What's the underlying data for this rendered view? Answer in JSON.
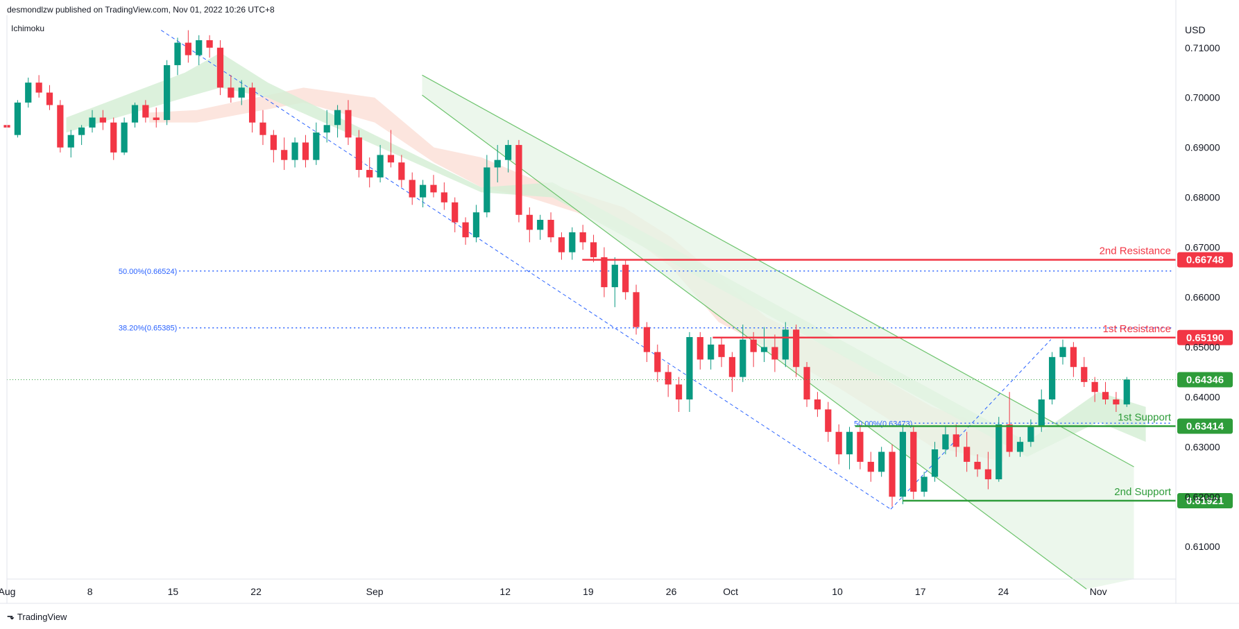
{
  "header": {
    "published_by": "desmondlzw published on TradingView.com, Nov 01, 2022 10:26 UTC+8"
  },
  "indicator": {
    "name": "Ichimoku"
  },
  "footer": {
    "brand": "TradingView",
    "logo": "tradingview-logo-icon"
  },
  "colors": {
    "up": "#26a69a",
    "up_candle": "#089981",
    "down": "#f23645",
    "resistance": "#f23645",
    "support": "#2e9c3a",
    "fib": "#2962ff",
    "channel_line": "#6cc36c",
    "channel_fill": "#e6f4e6",
    "cloud_bear": "#fbe0d8",
    "cloud_bull": "#d6efd6",
    "last_price": "#2e9c3a"
  },
  "chart_data": {
    "type": "candlestick",
    "symbol_currency": "USD",
    "ylim": [
      0.6035,
      0.7165
    ],
    "y_ticks": [
      "0.61000",
      "0.62000",
      "0.63000",
      "0.64000",
      "0.65000",
      "0.66000",
      "0.67000",
      "0.68000",
      "0.69000",
      "0.70000",
      "0.71000"
    ],
    "x_ticks": [
      {
        "label": "Aug",
        "day": 0
      },
      {
        "label": "8",
        "day": 7
      },
      {
        "label": "15",
        "day": 14
      },
      {
        "label": "22",
        "day": 21
      },
      {
        "label": "Sep",
        "day": 31
      },
      {
        "label": "12",
        "day": 42
      },
      {
        "label": "19",
        "day": 49
      },
      {
        "label": "26",
        "day": 56
      },
      {
        "label": "Oct",
        "day": 61
      },
      {
        "label": "10",
        "day": 70
      },
      {
        "label": "17",
        "day": 77
      },
      {
        "label": "24",
        "day": 84
      },
      {
        "label": "Nov",
        "day": 92
      }
    ],
    "last_price": "0.64346",
    "levels": [
      {
        "name": "2nd Resistance",
        "value": "0.66748",
        "kind": "resistance",
        "from_day": 48.5
      },
      {
        "name": "1st Resistance",
        "value": "0.65190",
        "kind": "resistance",
        "from_day": 59.5
      },
      {
        "name": "1st Support",
        "value": "0.63414",
        "kind": "support",
        "from_day": 71.5
      },
      {
        "name": "2nd Support",
        "value": "0.61921",
        "kind": "support",
        "from_day": 75.5
      }
    ],
    "fib_levels": [
      {
        "label": "50.00%(0.66524)",
        "value": 0.66524,
        "from_day": 7.5
      },
      {
        "label": "38.20%(0.65385)",
        "value": 0.65385,
        "from_day": 7.5
      },
      {
        "label": "50.00%(0.63473)",
        "value": 0.63473,
        "from_day": 69.5
      }
    ],
    "fib_swings": [
      {
        "from": [
          13,
          0.7135
        ],
        "to": [
          74.5,
          0.6175
        ]
      },
      {
        "from": [
          74.5,
          0.6175
        ],
        "to": [
          88,
          0.6515
        ]
      }
    ],
    "channel": {
      "upper": [
        [
          35,
          0.7045
        ],
        [
          95,
          0.626
        ]
      ],
      "lower": [
        [
          35,
          0.7005
        ],
        [
          91,
          0.6015
        ]
      ],
      "fill_end_day": 95
    },
    "candles_ohlc": [
      [
        0.6945,
        0.6955,
        0.6935,
        0.694
      ],
      [
        0.6925,
        0.6995,
        0.692,
        0.699
      ],
      [
        0.699,
        0.704,
        0.698,
        0.703
      ],
      [
        0.703,
        0.7045,
        0.7,
        0.701
      ],
      [
        0.701,
        0.7025,
        0.6975,
        0.6985
      ],
      [
        0.6985,
        0.6995,
        0.689,
        0.69
      ],
      [
        0.69,
        0.6935,
        0.688,
        0.6925
      ],
      [
        0.6925,
        0.6945,
        0.6905,
        0.694
      ],
      [
        0.694,
        0.6975,
        0.693,
        0.696
      ],
      [
        0.696,
        0.6975,
        0.6935,
        0.695
      ],
      [
        0.695,
        0.696,
        0.6875,
        0.689
      ],
      [
        0.689,
        0.696,
        0.6885,
        0.695
      ],
      [
        0.695,
        0.699,
        0.694,
        0.6985
      ],
      [
        0.6985,
        0.6995,
        0.695,
        0.696
      ],
      [
        0.696,
        0.698,
        0.694,
        0.6955
      ],
      [
        0.6955,
        0.7075,
        0.6945,
        0.7065
      ],
      [
        0.7065,
        0.712,
        0.7045,
        0.711
      ],
      [
        0.711,
        0.7135,
        0.707,
        0.7085
      ],
      [
        0.7085,
        0.7125,
        0.7065,
        0.7115
      ],
      [
        0.7115,
        0.7125,
        0.708,
        0.71
      ],
      [
        0.71,
        0.7115,
        0.7005,
        0.702
      ],
      [
        0.702,
        0.7045,
        0.699,
        0.7
      ],
      [
        0.7,
        0.7035,
        0.6985,
        0.702
      ],
      [
        0.702,
        0.703,
        0.693,
        0.695
      ],
      [
        0.695,
        0.6975,
        0.6905,
        0.6925
      ],
      [
        0.6925,
        0.6935,
        0.687,
        0.6895
      ],
      [
        0.6895,
        0.692,
        0.6855,
        0.6875
      ],
      [
        0.6875,
        0.692,
        0.686,
        0.691
      ],
      [
        0.691,
        0.6925,
        0.686,
        0.6875
      ],
      [
        0.6875,
        0.695,
        0.6865,
        0.693
      ],
      [
        0.693,
        0.6975,
        0.691,
        0.6945
      ],
      [
        0.6945,
        0.6985,
        0.692,
        0.6975
      ],
      [
        0.6975,
        0.6995,
        0.6905,
        0.692
      ],
      [
        0.692,
        0.6935,
        0.684,
        0.6855
      ],
      [
        0.6855,
        0.688,
        0.682,
        0.684
      ],
      [
        0.684,
        0.6905,
        0.683,
        0.6885
      ],
      [
        0.6885,
        0.6935,
        0.686,
        0.687
      ],
      [
        0.687,
        0.6885,
        0.682,
        0.6835
      ],
      [
        0.6835,
        0.685,
        0.6785,
        0.68
      ],
      [
        0.68,
        0.6835,
        0.678,
        0.6825
      ],
      [
        0.6825,
        0.6845,
        0.68,
        0.681
      ],
      [
        0.681,
        0.683,
        0.6775,
        0.679
      ],
      [
        0.679,
        0.68,
        0.673,
        0.675
      ],
      [
        0.675,
        0.676,
        0.6705,
        0.672
      ],
      [
        0.672,
        0.6785,
        0.671,
        0.677
      ],
      [
        0.677,
        0.6885,
        0.676,
        0.686
      ],
      [
        0.686,
        0.6905,
        0.683,
        0.6875
      ],
      [
        0.6875,
        0.6915,
        0.685,
        0.6905
      ],
      [
        0.6905,
        0.6915,
        0.675,
        0.6765
      ],
      [
        0.6765,
        0.678,
        0.671,
        0.6735
      ],
      [
        0.6735,
        0.6765,
        0.6715,
        0.6755
      ],
      [
        0.6755,
        0.677,
        0.671,
        0.672
      ],
      [
        0.672,
        0.673,
        0.6675,
        0.669
      ],
      [
        0.669,
        0.674,
        0.6675,
        0.673
      ],
      [
        0.673,
        0.6745,
        0.6695,
        0.671
      ],
      [
        0.671,
        0.6725,
        0.667,
        0.668
      ],
      [
        0.668,
        0.67,
        0.66,
        0.662
      ],
      [
        0.662,
        0.668,
        0.658,
        0.6665
      ],
      [
        0.6665,
        0.6675,
        0.6595,
        0.661
      ],
      [
        0.661,
        0.6625,
        0.6525,
        0.654
      ],
      [
        0.654,
        0.655,
        0.647,
        0.649
      ],
      [
        0.649,
        0.6505,
        0.643,
        0.645
      ],
      [
        0.645,
        0.6465,
        0.64,
        0.6425
      ],
      [
        0.6425,
        0.644,
        0.637,
        0.6395
      ],
      [
        0.6395,
        0.653,
        0.637,
        0.652
      ],
      [
        0.652,
        0.653,
        0.6455,
        0.6475
      ],
      [
        0.6475,
        0.652,
        0.6455,
        0.6505
      ],
      [
        0.6505,
        0.652,
        0.646,
        0.648
      ],
      [
        0.648,
        0.649,
        0.641,
        0.644
      ],
      [
        0.644,
        0.6545,
        0.643,
        0.6515
      ],
      [
        0.6515,
        0.653,
        0.646,
        0.649
      ],
      [
        0.649,
        0.654,
        0.647,
        0.65
      ],
      [
        0.65,
        0.6525,
        0.645,
        0.6475
      ],
      [
        0.6475,
        0.655,
        0.646,
        0.6535
      ],
      [
        0.6535,
        0.6545,
        0.644,
        0.646
      ],
      [
        0.646,
        0.647,
        0.638,
        0.6395
      ],
      [
        0.6395,
        0.641,
        0.636,
        0.6375
      ],
      [
        0.6375,
        0.639,
        0.631,
        0.633
      ],
      [
        0.633,
        0.6345,
        0.6265,
        0.6285
      ],
      [
        0.6285,
        0.634,
        0.6255,
        0.633
      ],
      [
        0.633,
        0.6345,
        0.6255,
        0.627
      ],
      [
        0.627,
        0.629,
        0.623,
        0.625
      ],
      [
        0.625,
        0.63,
        0.624,
        0.629
      ],
      [
        0.629,
        0.6305,
        0.618,
        0.62
      ],
      [
        0.62,
        0.6345,
        0.6185,
        0.633
      ],
      [
        0.633,
        0.634,
        0.6195,
        0.621
      ],
      [
        0.621,
        0.625,
        0.62,
        0.624
      ],
      [
        0.624,
        0.631,
        0.623,
        0.6295
      ],
      [
        0.6295,
        0.634,
        0.6285,
        0.6325
      ],
      [
        0.6325,
        0.6345,
        0.628,
        0.63
      ],
      [
        0.63,
        0.633,
        0.625,
        0.627
      ],
      [
        0.627,
        0.6285,
        0.624,
        0.6255
      ],
      [
        0.6255,
        0.629,
        0.6215,
        0.6235
      ],
      [
        0.6235,
        0.636,
        0.623,
        0.6345
      ],
      [
        0.6345,
        0.641,
        0.628,
        0.629
      ],
      [
        0.629,
        0.632,
        0.628,
        0.631
      ],
      [
        0.631,
        0.6355,
        0.63,
        0.634
      ],
      [
        0.634,
        0.6415,
        0.633,
        0.6395
      ],
      [
        0.6395,
        0.649,
        0.6385,
        0.648
      ],
      [
        0.648,
        0.6515,
        0.6465,
        0.65
      ],
      [
        0.65,
        0.651,
        0.644,
        0.646
      ],
      [
        0.646,
        0.648,
        0.642,
        0.643
      ],
      [
        0.643,
        0.644,
        0.639,
        0.641
      ],
      [
        0.641,
        0.643,
        0.6385,
        0.6395
      ],
      [
        0.6395,
        0.641,
        0.637,
        0.6385
      ],
      [
        0.6385,
        0.644,
        0.638,
        0.6435
      ]
    ]
  }
}
